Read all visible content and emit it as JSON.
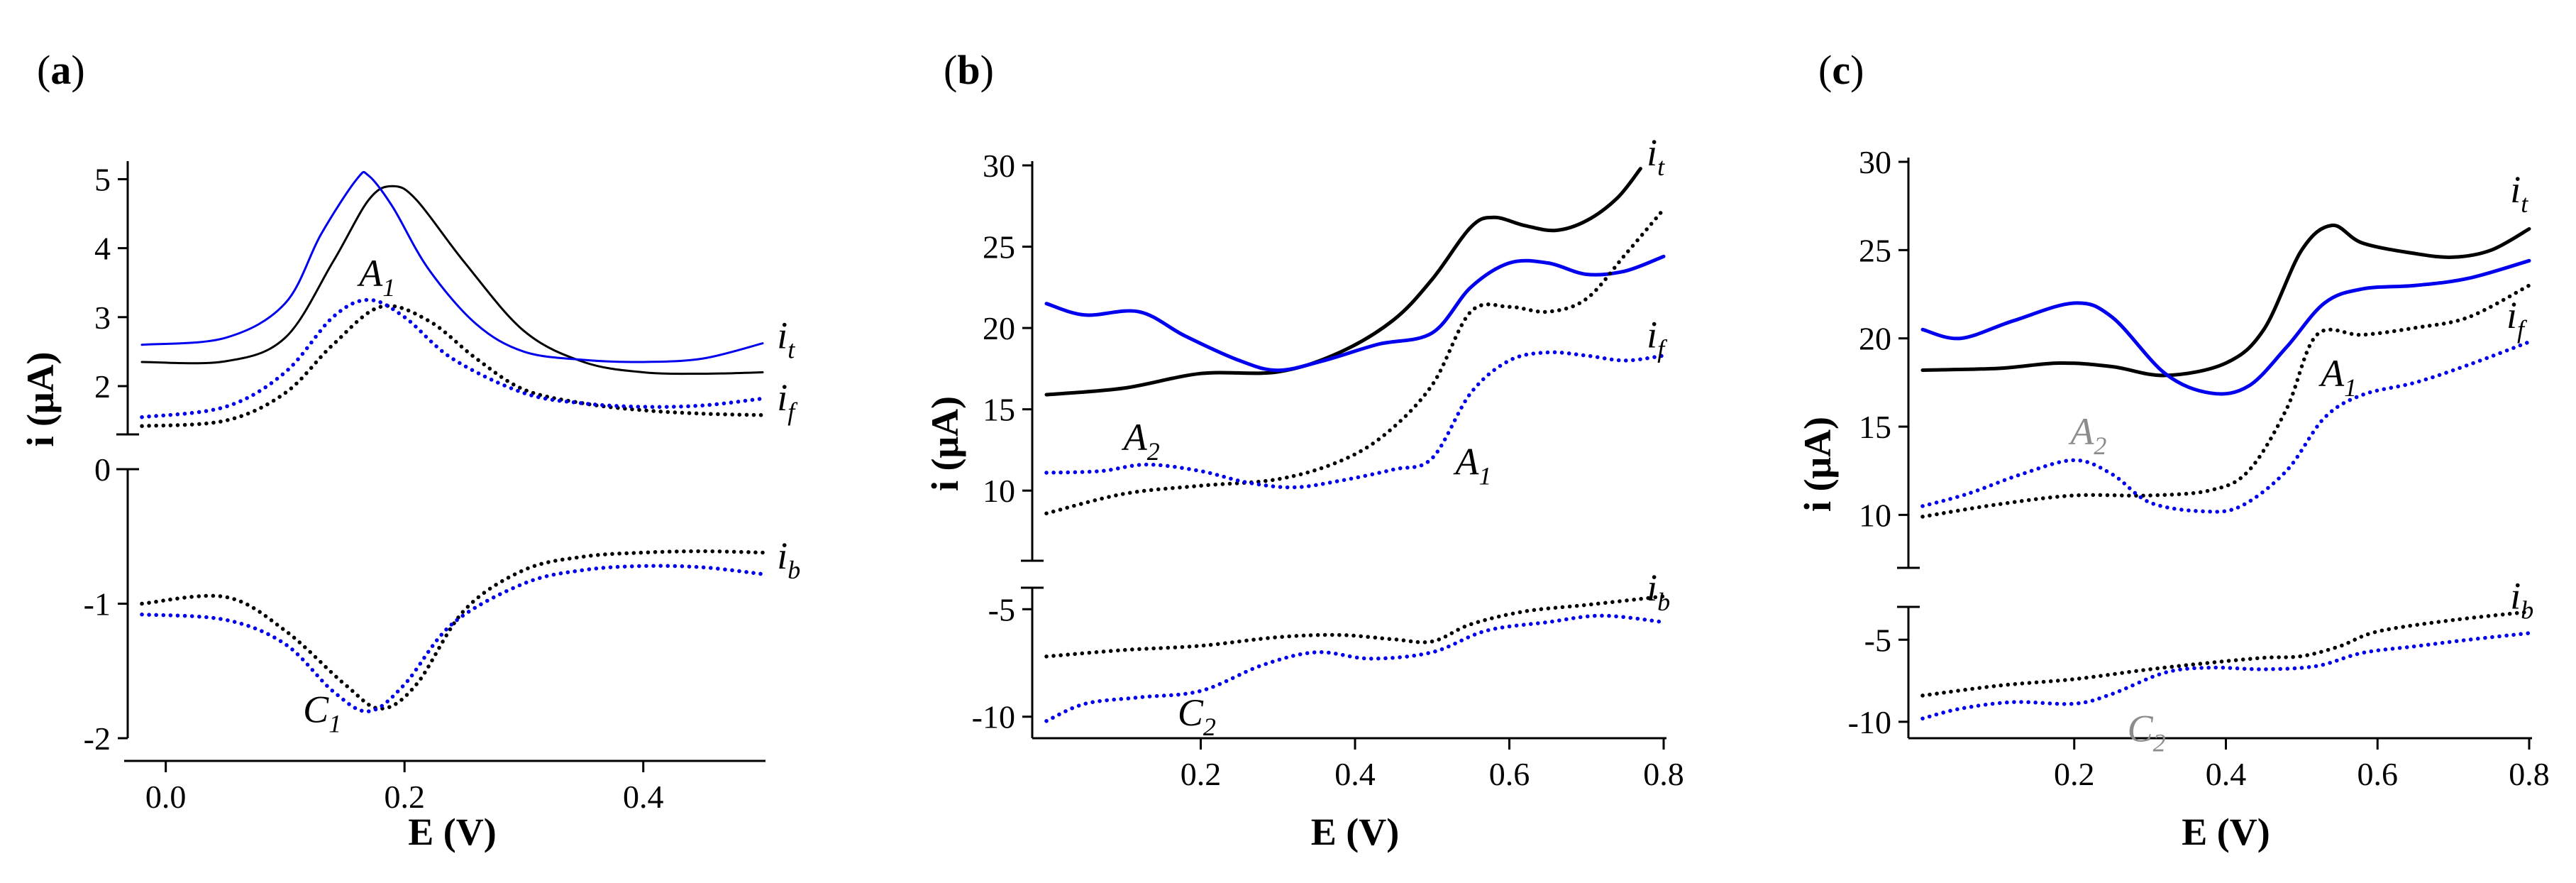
{
  "colors": {
    "black": "#000000",
    "blue": "#0000ee",
    "gray": "#8c8c8c"
  },
  "chart_data": [
    {
      "type": "line",
      "panel_label": "a",
      "xlabel": "E (V)",
      "ylabel": "i (μA)",
      "xlim": [
        -0.02,
        0.5
      ],
      "x_ticks": [
        "0.0",
        "0.2",
        "0.4"
      ],
      "x_tick_values": [
        0.0,
        0.2,
        0.4
      ],
      "upper": {
        "ylim": [
          1.3,
          5.2
        ],
        "ticks": [
          "2",
          "3",
          "4",
          "5"
        ],
        "tick_values": [
          2,
          3,
          4,
          5
        ]
      },
      "lower": {
        "ylim": [
          -2,
          0
        ],
        "ticks": [
          "-2",
          "-1",
          "0"
        ],
        "tick_values": [
          -2,
          -1,
          0
        ]
      },
      "series": [
        {
          "name": "i_t black",
          "axis": "upper",
          "color": "black",
          "style": "solid",
          "width": 3,
          "x": [
            -0.02,
            0.05,
            0.1,
            0.14,
            0.17,
            0.19,
            0.21,
            0.25,
            0.3,
            0.35,
            0.4,
            0.45,
            0.5
          ],
          "y": [
            2.35,
            2.36,
            2.7,
            3.8,
            4.7,
            4.9,
            4.7,
            3.8,
            2.8,
            2.35,
            2.2,
            2.18,
            2.2
          ]
        },
        {
          "name": "i_t blue",
          "axis": "upper",
          "color": "blue",
          "style": "solid",
          "width": 3,
          "x": [
            -0.02,
            0.05,
            0.1,
            0.13,
            0.16,
            0.17,
            0.19,
            0.22,
            0.26,
            0.3,
            0.35,
            0.4,
            0.45,
            0.5
          ],
          "y": [
            2.6,
            2.7,
            3.2,
            4.2,
            5.0,
            5.05,
            4.6,
            3.7,
            2.9,
            2.5,
            2.38,
            2.35,
            2.4,
            2.62
          ]
        },
        {
          "name": "i_f black",
          "axis": "upper",
          "color": "black",
          "style": "dotted",
          "width": 5,
          "x": [
            -0.02,
            0.05,
            0.1,
            0.14,
            0.18,
            0.22,
            0.26,
            0.3,
            0.35,
            0.4,
            0.45,
            0.5
          ],
          "y": [
            1.42,
            1.5,
            1.9,
            2.6,
            3.15,
            2.95,
            2.4,
            1.95,
            1.75,
            1.65,
            1.6,
            1.58
          ]
        },
        {
          "name": "i_f blue",
          "axis": "upper",
          "color": "blue",
          "style": "dotted",
          "width": 5,
          "x": [
            -0.02,
            0.05,
            0.1,
            0.14,
            0.17,
            0.2,
            0.24,
            0.3,
            0.35,
            0.4,
            0.45,
            0.5
          ],
          "y": [
            1.55,
            1.7,
            2.2,
            3.0,
            3.25,
            3.0,
            2.4,
            1.9,
            1.75,
            1.7,
            1.72,
            1.82
          ]
        },
        {
          "name": "i_b black",
          "axis": "lower",
          "color": "black",
          "style": "dotted",
          "width": 5,
          "x": [
            -0.02,
            0.05,
            0.1,
            0.15,
            0.18,
            0.21,
            0.25,
            0.3,
            0.35,
            0.4,
            0.45,
            0.5
          ],
          "y": [
            -1.0,
            -0.95,
            -1.2,
            -1.6,
            -1.78,
            -1.6,
            -1.05,
            -0.75,
            -0.65,
            -0.62,
            -0.61,
            -0.62
          ]
        },
        {
          "name": "i_b blue",
          "axis": "lower",
          "color": "blue",
          "style": "dotted",
          "width": 5,
          "x": [
            -0.02,
            0.05,
            0.1,
            0.14,
            0.17,
            0.2,
            0.24,
            0.3,
            0.35,
            0.4,
            0.45,
            0.5
          ],
          "y": [
            -1.08,
            -1.12,
            -1.3,
            -1.65,
            -1.8,
            -1.6,
            -1.15,
            -0.85,
            -0.75,
            -0.72,
            -0.73,
            -0.78
          ]
        }
      ],
      "annotations": [
        {
          "letter": "A",
          "sub": "1",
          "x": 0.162,
          "y": 3.45,
          "axis": "upper",
          "color": "black"
        },
        {
          "letter": "C",
          "sub": "1",
          "x": 0.115,
          "y": -1.88,
          "axis": "lower",
          "color": "black"
        },
        {
          "letter": "i",
          "sub": "t",
          "x": 0.512,
          "y": 2.55,
          "axis": "upper",
          "color": "black"
        },
        {
          "letter": "i",
          "sub": "f",
          "x": 0.512,
          "y": 1.65,
          "axis": "upper",
          "color": "black"
        },
        {
          "letter": "i",
          "sub": "b",
          "x": 0.512,
          "y": -0.74,
          "axis": "lower",
          "color": "black"
        }
      ]
    },
    {
      "type": "line",
      "panel_label": "b",
      "xlabel": "E (V)",
      "ylabel": "i (μA)",
      "xlim": [
        0.0,
        0.8
      ],
      "x_ticks": [
        "0.2",
        "0.4",
        "0.6",
        "0.8"
      ],
      "x_tick_values": [
        0.2,
        0.4,
        0.6,
        0.8
      ],
      "upper": {
        "ylim": [
          8,
          30
        ],
        "ticks": [
          "10",
          "15",
          "20",
          "25",
          "30"
        ],
        "tick_values": [
          10,
          15,
          20,
          25,
          30
        ]
      },
      "lower": {
        "ylim": [
          -11,
          -4
        ],
        "ticks": [
          "-10",
          "-5"
        ],
        "tick_values": [
          -10,
          -5
        ]
      },
      "series": [
        {
          "name": "i_t black",
          "axis": "upper",
          "color": "black",
          "style": "solid",
          "width": 5,
          "x": [
            0.0,
            0.1,
            0.2,
            0.3,
            0.38,
            0.45,
            0.5,
            0.55,
            0.58,
            0.62,
            0.66,
            0.7,
            0.74,
            0.77
          ],
          "y": [
            15.9,
            16.3,
            17.2,
            17.3,
            18.5,
            20.5,
            23.0,
            26.2,
            26.8,
            26.3,
            26.0,
            26.6,
            28.0,
            29.8
          ]
        },
        {
          "name": "i_t blue",
          "axis": "upper",
          "color": "blue",
          "style": "solid",
          "width": 5,
          "x": [
            0.0,
            0.05,
            0.12,
            0.18,
            0.25,
            0.3,
            0.36,
            0.43,
            0.5,
            0.55,
            0.6,
            0.65,
            0.7,
            0.75,
            0.8
          ],
          "y": [
            21.5,
            20.8,
            21.0,
            19.5,
            18.0,
            17.4,
            18.0,
            19.0,
            19.7,
            22.5,
            24.0,
            24.0,
            23.3,
            23.5,
            24.4
          ]
        },
        {
          "name": "i_f black",
          "axis": "upper",
          "color": "black",
          "style": "dotted",
          "width": 5,
          "x": [
            0.0,
            0.1,
            0.2,
            0.3,
            0.38,
            0.44,
            0.5,
            0.55,
            0.6,
            0.65,
            0.7,
            0.75,
            0.8
          ],
          "y": [
            8.6,
            9.8,
            10.3,
            10.7,
            11.8,
            13.5,
            16.5,
            21.0,
            21.3,
            21.0,
            21.8,
            24.5,
            27.3
          ]
        },
        {
          "name": "i_f blue",
          "axis": "upper",
          "color": "blue",
          "style": "dotted",
          "width": 5,
          "x": [
            0.0,
            0.07,
            0.13,
            0.2,
            0.26,
            0.32,
            0.38,
            0.45,
            0.5,
            0.55,
            0.6,
            0.65,
            0.7,
            0.75,
            0.8
          ],
          "y": [
            11.1,
            11.2,
            11.6,
            11.2,
            10.5,
            10.2,
            10.6,
            11.3,
            12.0,
            16.0,
            18.0,
            18.5,
            18.3,
            18.0,
            18.3
          ]
        },
        {
          "name": "i_b black",
          "axis": "lower",
          "color": "black",
          "style": "dotted",
          "width": 5,
          "x": [
            0.0,
            0.1,
            0.2,
            0.3,
            0.38,
            0.45,
            0.5,
            0.55,
            0.62,
            0.7,
            0.8
          ],
          "y": [
            -7.2,
            -6.9,
            -6.7,
            -6.3,
            -6.2,
            -6.4,
            -6.5,
            -5.7,
            -5.1,
            -4.8,
            -4.4
          ]
        },
        {
          "name": "i_b blue",
          "axis": "lower",
          "color": "blue",
          "style": "dotted",
          "width": 5,
          "x": [
            0.0,
            0.05,
            0.12,
            0.2,
            0.28,
            0.35,
            0.42,
            0.5,
            0.57,
            0.65,
            0.72,
            0.8
          ],
          "y": [
            -10.2,
            -9.4,
            -9.1,
            -8.8,
            -7.6,
            -7.0,
            -7.3,
            -7.0,
            -6.0,
            -5.6,
            -5.3,
            -5.6
          ]
        }
      ],
      "annotations": [
        {
          "letter": "A",
          "sub": "2",
          "x": 0.1,
          "y": 12.5,
          "axis": "upper",
          "color": "black"
        },
        {
          "letter": "A",
          "sub": "1",
          "x": 0.53,
          "y": 11.0,
          "axis": "upper",
          "color": "black"
        },
        {
          "letter": "C",
          "sub": "2",
          "x": 0.17,
          "y": -10.4,
          "axis": "lower",
          "color": "black"
        },
        {
          "letter": "i",
          "sub": "t",
          "x": 0.778,
          "y": 30.0,
          "axis": "upper",
          "color": "black"
        },
        {
          "letter": "i",
          "sub": "f",
          "x": 0.778,
          "y": 18.8,
          "axis": "upper",
          "color": "black"
        },
        {
          "letter": "i",
          "sub": "b",
          "x": 0.778,
          "y": -4.6,
          "axis": "lower",
          "color": "black"
        }
      ]
    },
    {
      "type": "line",
      "panel_label": "c",
      "xlabel": "E (V)",
      "ylabel": "i (μA)",
      "xlim": [
        0.0,
        0.8
      ],
      "x_ticks": [
        "0.2",
        "0.4",
        "0.6",
        "0.8"
      ],
      "x_tick_values": [
        0.2,
        0.4,
        0.6,
        0.8
      ],
      "upper": {
        "ylim": [
          7,
          30
        ],
        "ticks": [
          "10",
          "15",
          "20",
          "25",
          "30"
        ],
        "tick_values": [
          10,
          15,
          20,
          25,
          30
        ]
      },
      "lower": {
        "ylim": [
          -11,
          -3
        ],
        "ticks": [
          "-10",
          "-5"
        ],
        "tick_values": [
          -10,
          -5
        ]
      },
      "series": [
        {
          "name": "i_t black",
          "axis": "upper",
          "color": "black",
          "style": "solid",
          "width": 5,
          "x": [
            0.0,
            0.1,
            0.18,
            0.25,
            0.32,
            0.4,
            0.45,
            0.5,
            0.54,
            0.58,
            0.65,
            0.7,
            0.75,
            0.8
          ],
          "y": [
            18.2,
            18.3,
            18.6,
            18.4,
            17.9,
            18.6,
            20.5,
            25.0,
            26.4,
            25.4,
            24.8,
            24.6,
            25.0,
            26.2
          ]
        },
        {
          "name": "i_t blue",
          "axis": "upper",
          "color": "blue",
          "style": "solid",
          "width": 5,
          "x": [
            0.0,
            0.05,
            0.12,
            0.2,
            0.25,
            0.32,
            0.38,
            0.43,
            0.48,
            0.53,
            0.58,
            0.65,
            0.72,
            0.8
          ],
          "y": [
            20.5,
            20.0,
            21.0,
            22.0,
            21.2,
            18.0,
            16.9,
            17.3,
            19.5,
            22.0,
            22.8,
            23.0,
            23.4,
            24.4
          ]
        },
        {
          "name": "i_f black",
          "axis": "upper",
          "color": "black",
          "style": "dotted",
          "width": 5,
          "x": [
            0.0,
            0.1,
            0.2,
            0.3,
            0.38,
            0.43,
            0.48,
            0.52,
            0.58,
            0.65,
            0.72,
            0.8
          ],
          "y": [
            9.9,
            10.6,
            11.1,
            11.1,
            11.4,
            12.5,
            16.0,
            20.2,
            20.2,
            20.6,
            21.2,
            23.0
          ]
        },
        {
          "name": "i_f blue",
          "axis": "upper",
          "color": "blue",
          "style": "dotted",
          "width": 5,
          "x": [
            0.0,
            0.06,
            0.13,
            0.2,
            0.25,
            0.3,
            0.37,
            0.42,
            0.48,
            0.53,
            0.58,
            0.65,
            0.72,
            0.8
          ],
          "y": [
            10.5,
            11.2,
            12.3,
            13.1,
            12.3,
            10.7,
            10.2,
            10.5,
            12.5,
            15.5,
            16.8,
            17.5,
            18.5,
            19.8
          ]
        },
        {
          "name": "i_b black",
          "axis": "lower",
          "color": "black",
          "style": "dotted",
          "width": 5,
          "x": [
            0.0,
            0.1,
            0.2,
            0.3,
            0.38,
            0.45,
            0.5,
            0.55,
            0.6,
            0.7,
            0.8
          ],
          "y": [
            -8.4,
            -7.8,
            -7.4,
            -6.8,
            -6.4,
            -6.1,
            -6.0,
            -5.4,
            -4.5,
            -3.8,
            -3.3
          ]
        },
        {
          "name": "i_b blue",
          "axis": "lower",
          "color": "blue",
          "style": "dotted",
          "width": 5,
          "x": [
            0.0,
            0.05,
            0.12,
            0.2,
            0.25,
            0.32,
            0.38,
            0.45,
            0.52,
            0.58,
            0.65,
            0.72,
            0.8
          ],
          "y": [
            -9.8,
            -9.2,
            -8.8,
            -8.9,
            -8.3,
            -7.0,
            -6.7,
            -6.8,
            -6.6,
            -5.8,
            -5.4,
            -5.0,
            -4.6
          ]
        }
      ],
      "annotations": [
        {
          "letter": "A",
          "sub": "2",
          "x": 0.195,
          "y": 14.0,
          "axis": "upper",
          "color": "gray"
        },
        {
          "letter": "A",
          "sub": "1",
          "x": 0.525,
          "y": 17.3,
          "axis": "upper",
          "color": "black"
        },
        {
          "letter": "C",
          "sub": "2",
          "x": 0.27,
          "y": -11.2,
          "axis": "lower",
          "color": "gray"
        },
        {
          "letter": "i",
          "sub": "t",
          "x": 0.775,
          "y": 27.7,
          "axis": "upper",
          "color": "black"
        },
        {
          "letter": "i",
          "sub": "f",
          "x": 0.77,
          "y": 20.6,
          "axis": "upper",
          "color": "black"
        },
        {
          "letter": "i",
          "sub": "b",
          "x": 0.775,
          "y": -3.1,
          "axis": "lower",
          "color": "black"
        }
      ]
    }
  ]
}
